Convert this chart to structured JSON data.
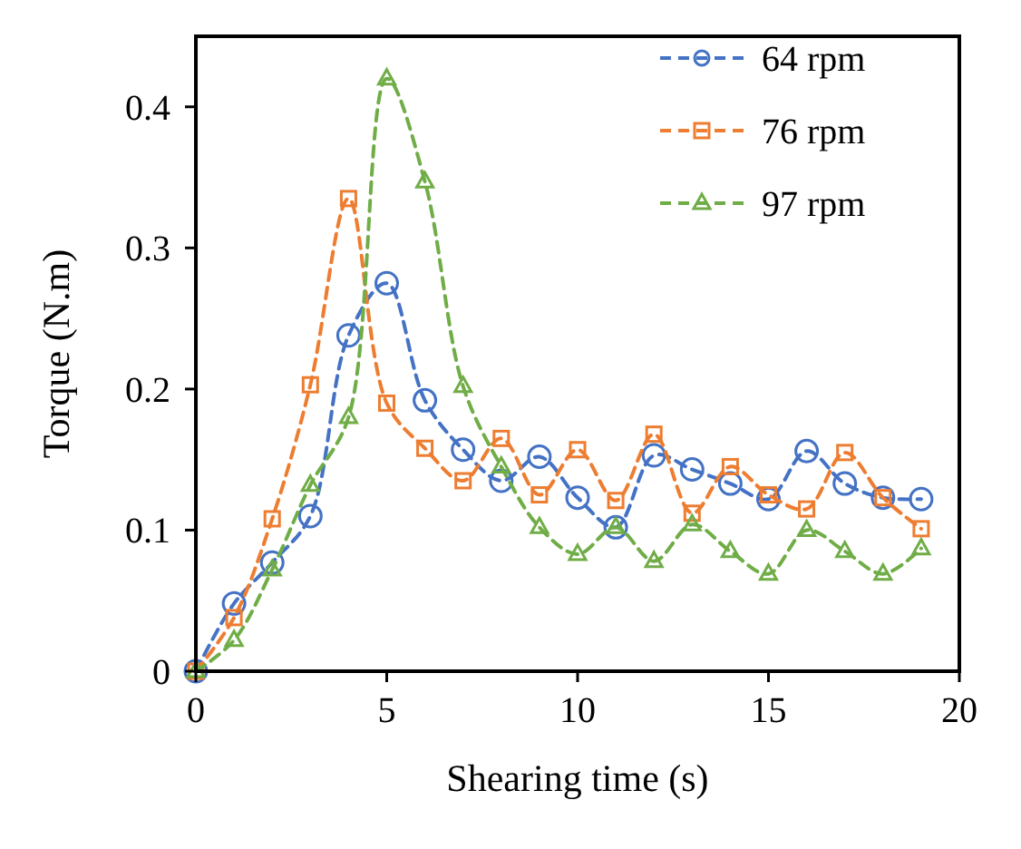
{
  "chart_data": {
    "type": "line",
    "xlabel": "Shearing time (s)",
    "ylabel": "Torque (N.m)",
    "x": [
      0,
      1,
      2,
      3,
      4,
      5,
      6,
      7,
      8,
      9,
      10,
      11,
      12,
      13,
      14,
      15,
      16,
      17,
      18,
      19
    ],
    "xlim": [
      0,
      20
    ],
    "xticks": [
      0,
      5,
      10,
      15,
      20
    ],
    "ylim": [
      0,
      0.45
    ],
    "yticks": [
      {
        "value": 0,
        "label": "0"
      },
      {
        "value": 0.1,
        "label": "0.1"
      },
      {
        "value": 0.2,
        "label": "0.2"
      },
      {
        "value": 0.3,
        "label": "0.3"
      },
      {
        "value": 0.4,
        "label": "0.4"
      }
    ],
    "grid": false,
    "legend": "top right",
    "line_style": "dashed",
    "series": [
      {
        "name": "64 rpm",
        "color": "#4472c4",
        "marker": "circle",
        "values": [
          0,
          0.048,
          0.077,
          0.11,
          0.238,
          0.275,
          0.192,
          0.157,
          0.135,
          0.152,
          0.123,
          0.102,
          0.153,
          0.143,
          0.133,
          0.122,
          0.156,
          0.133,
          0.123,
          0.122
        ]
      },
      {
        "name": "76 rpm",
        "color": "#ed7d31",
        "marker": "square",
        "values": [
          0,
          0.038,
          0.108,
          0.203,
          0.335,
          0.19,
          0.158,
          0.135,
          0.165,
          0.125,
          0.157,
          0.121,
          0.168,
          0.112,
          0.145,
          0.125,
          0.115,
          0.155,
          0.123,
          0.101
        ]
      },
      {
        "name": "97 rpm",
        "color": "#70ad47",
        "marker": "triangle",
        "values": [
          0,
          0.022,
          0.072,
          0.132,
          0.18,
          0.42,
          0.347,
          0.202,
          0.145,
          0.102,
          0.083,
          0.102,
          0.078,
          0.104,
          0.085,
          0.069,
          0.1,
          0.085,
          0.069,
          0.087
        ]
      }
    ]
  }
}
